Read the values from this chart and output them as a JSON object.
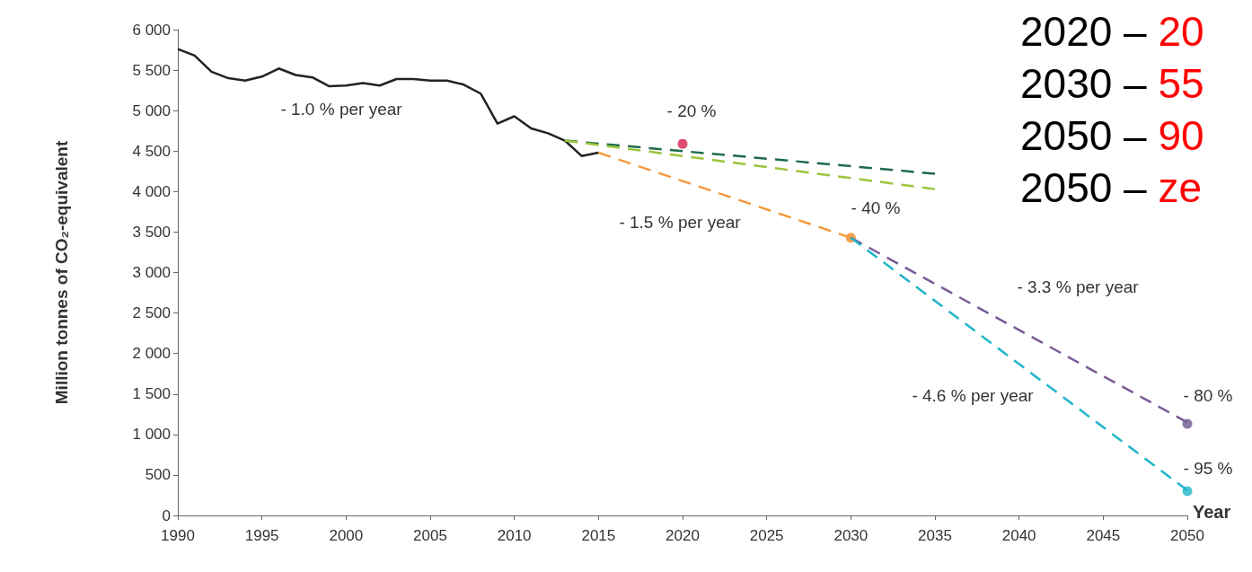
{
  "chart_data": {
    "type": "line",
    "ylabel": "Million tonnes of CO₂-equivalent",
    "xlabel": "Year",
    "xlim": [
      1990,
      2050
    ],
    "xticks": [
      1990,
      1995,
      2000,
      2005,
      2010,
      2015,
      2020,
      2025,
      2030,
      2035,
      2040,
      2045,
      2050
    ],
    "ylim": [
      0,
      6000
    ],
    "yticks": [
      {
        "value": 0,
        "label": "0"
      },
      {
        "value": 500,
        "label": "500"
      },
      {
        "value": 1000,
        "label": "1 000"
      },
      {
        "value": 1500,
        "label": "1 500"
      },
      {
        "value": 2000,
        "label": "2 000"
      },
      {
        "value": 2500,
        "label": "2 500"
      },
      {
        "value": 3000,
        "label": "3 000"
      },
      {
        "value": 3500,
        "label": "3 500"
      },
      {
        "value": 4000,
        "label": "4 000"
      },
      {
        "value": 4500,
        "label": "4 500"
      },
      {
        "value": 5000,
        "label": "5 000"
      },
      {
        "value": 5500,
        "label": "5 500"
      },
      {
        "value": 6000,
        "label": "6 000"
      }
    ],
    "grid": false,
    "marker": "none",
    "series": [
      {
        "color": "#222222",
        "line_style": "solid",
        "x": [
          1990,
          1991,
          1992,
          1993,
          1994,
          1995,
          1996,
          1997,
          1998,
          1999,
          2000,
          2001,
          2002,
          2003,
          2004,
          2005,
          2006,
          2007,
          2008,
          2009,
          2010,
          2011,
          2012,
          2013,
          2014,
          2015
        ],
        "values": [
          5760,
          5680,
          5480,
          5400,
          5370,
          5420,
          5520,
          5440,
          5410,
          5300,
          5310,
          5340,
          5310,
          5390,
          5390,
          5370,
          5370,
          5320,
          5210,
          4840,
          4930,
          4780,
          4720,
          4630,
          4440,
          4480
        ]
      },
      {
        "color": "#1e6b4a",
        "line_style": "dashed",
        "x": [
          2013,
          2035
        ],
        "values": [
          4630,
          4220
        ]
      },
      {
        "color": "#9cc43c",
        "line_style": "dashed",
        "x": [
          2013,
          2035
        ],
        "values": [
          4630,
          4030
        ]
      },
      {
        "color": "#f39a3a",
        "line_style": "dashed",
        "x": [
          2015,
          2030
        ],
        "values": [
          4480,
          3430
        ]
      },
      {
        "color": "#7a5a98",
        "line_style": "dashed",
        "x": [
          2030,
          2050
        ],
        "values": [
          3430,
          1150
        ]
      },
      {
        "color": "#1fb5c8",
        "line_style": "dashed",
        "x": [
          2030,
          2050
        ],
        "values": [
          3430,
          310
        ]
      },
      {
        "type": "scatter",
        "marker": "circle",
        "color": "#d6204e",
        "x": [
          2020
        ],
        "values": [
          4590
        ]
      },
      {
        "type": "scatter",
        "marker": "circle",
        "color": "#f08a24",
        "x": [
          2030
        ],
        "values": [
          3430
        ]
      },
      {
        "type": "scatter",
        "marker": "circle",
        "color": "#6a5a8e",
        "x": [
          2050
        ],
        "values": [
          1130
        ]
      },
      {
        "type": "scatter",
        "marker": "circle",
        "color": "#1fb8c8",
        "x": [
          2050
        ],
        "values": [
          300
        ]
      }
    ],
    "annotations": [
      "- 1.0 % per year",
      "- 20 %",
      "- 1.5 % per year",
      "- 40 %",
      "- 3.3 % per year",
      "- 4.6 % per year",
      "- 80 %",
      "- 95 %",
      "2020 – 20",
      "2030 – 55",
      "2050 – 90",
      "2050 – ze"
    ]
  }
}
